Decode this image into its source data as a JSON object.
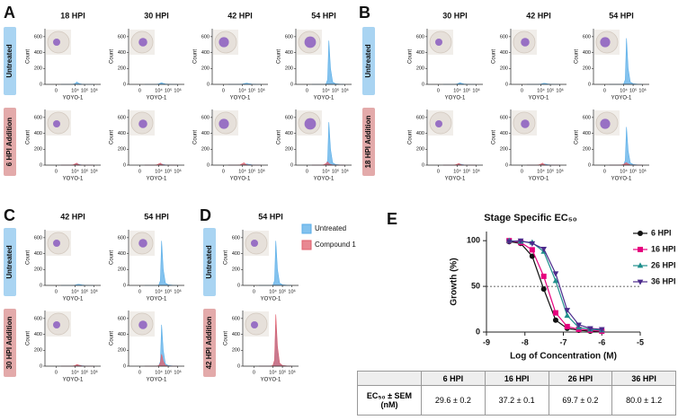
{
  "flow": {
    "axes": {
      "ylabel": "Count",
      "xlabel": "YOYO-1",
      "ylim": [
        0,
        700
      ],
      "yticks": [
        0,
        200,
        400,
        600
      ],
      "xlim": [
        -1500,
        5000000
      ],
      "scale": "biexponential",
      "xticks": [
        0,
        {
          "value": 10000,
          "label": "10⁴"
        },
        {
          "value": 100000,
          "label": "10⁵"
        },
        {
          "value": 1000000,
          "label": "10⁶"
        }
      ],
      "x": [
        300,
        1000,
        3000,
        6000,
        10000,
        15000,
        20000,
        30000,
        50000,
        100000,
        300000,
        1000000
      ]
    },
    "legend": [
      {
        "name": "Untreated",
        "color": "#5aaee8"
      },
      {
        "name": "Compound 1",
        "color": "#e0606e"
      }
    ],
    "panels": [
      {
        "label": "A",
        "columns": [
          "18 HPI",
          "30 HPI",
          "42 HPI",
          "54 HPI"
        ],
        "rows": [
          "Untreated",
          "6 HPI Addition"
        ],
        "plots": [
          [
            {
              "series": [
                {
                  "name": "Untreated",
                  "values": [
                    0,
                    0,
                    0,
                    2,
                    10,
                    30,
                    20,
                    8,
                    3,
                    1,
                    0,
                    0
                  ]
                }
              ]
            },
            {
              "series": [
                {
                  "name": "Untreated",
                  "values": [
                    0,
                    0,
                    0,
                    1,
                    5,
                    15,
                    20,
                    12,
                    5,
                    2,
                    0,
                    0
                  ]
                }
              ]
            },
            {
              "series": [
                {
                  "name": "Untreated",
                  "values": [
                    0,
                    0,
                    0,
                    1,
                    4,
                    8,
                    12,
                    15,
                    10,
                    4,
                    1,
                    0
                  ]
                }
              ]
            },
            {
              "series": [
                {
                  "name": "Untreated",
                  "values": [
                    0,
                    0,
                    0,
                    0,
                    5,
                    60,
                    550,
                    200,
                    30,
                    8,
                    2,
                    0
                  ]
                }
              ]
            }
          ],
          [
            {
              "series": [
                {
                  "name": "Untreated",
                  "values": [
                    0,
                    0,
                    0,
                    1,
                    6,
                    20,
                    15,
                    6,
                    2,
                    0,
                    0,
                    0
                  ]
                },
                {
                  "name": "Compound 1",
                  "values": [
                    0,
                    0,
                    0,
                    3,
                    15,
                    25,
                    12,
                    4,
                    1,
                    0,
                    0,
                    0
                  ]
                }
              ]
            },
            {
              "series": [
                {
                  "name": "Untreated",
                  "values": [
                    0,
                    0,
                    0,
                    1,
                    4,
                    12,
                    15,
                    8,
                    3,
                    1,
                    0,
                    0
                  ]
                },
                {
                  "name": "Compound 1",
                  "values": [
                    0,
                    0,
                    0,
                    3,
                    15,
                    25,
                    12,
                    4,
                    1,
                    0,
                    0,
                    0
                  ]
                }
              ]
            },
            {
              "series": [
                {
                  "name": "Untreated",
                  "values": [
                    0,
                    0,
                    0,
                    1,
                    4,
                    8,
                    12,
                    15,
                    10,
                    4,
                    1,
                    0
                  ]
                },
                {
                  "name": "Compound 1",
                  "values": [
                    0,
                    0,
                    0,
                    4,
                    18,
                    30,
                    14,
                    5,
                    2,
                    0,
                    0,
                    0
                  ]
                }
              ]
            },
            {
              "series": [
                {
                  "name": "Untreated",
                  "values": [
                    0,
                    0,
                    0,
                    0,
                    5,
                    60,
                    540,
                    200,
                    30,
                    8,
                    2,
                    0
                  ]
                },
                {
                  "name": "Compound 1",
                  "values": [
                    0,
                    0,
                    0,
                    5,
                    20,
                    40,
                    20,
                    8,
                    2,
                    0,
                    0,
                    0
                  ]
                }
              ]
            }
          ]
        ]
      },
      {
        "label": "B",
        "columns": [
          "30 HPI",
          "42 HPI",
          "54 HPI"
        ],
        "rows": [
          "Untreated",
          "18 HPI Addition"
        ],
        "plots": [
          [
            {
              "series": [
                {
                  "name": "Untreated",
                  "values": [
                    0,
                    0,
                    0,
                    1,
                    5,
                    15,
                    20,
                    12,
                    5,
                    2,
                    0,
                    0
                  ]
                }
              ]
            },
            {
              "series": [
                {
                  "name": "Untreated",
                  "values": [
                    0,
                    0,
                    0,
                    1,
                    4,
                    10,
                    14,
                    12,
                    6,
                    2,
                    0,
                    0
                  ]
                }
              ]
            },
            {
              "series": [
                {
                  "name": "Untreated",
                  "values": [
                    0,
                    0,
                    0,
                    0,
                    5,
                    60,
                    580,
                    200,
                    30,
                    8,
                    2,
                    0
                  ]
                }
              ]
            }
          ],
          [
            {
              "series": [
                {
                  "name": "Untreated",
                  "values": [
                    0,
                    0,
                    0,
                    1,
                    4,
                    12,
                    15,
                    8,
                    3,
                    1,
                    0,
                    0
                  ]
                },
                {
                  "name": "Compound 1",
                  "values": [
                    0,
                    0,
                    0,
                    3,
                    12,
                    22,
                    10,
                    4,
                    1,
                    0,
                    0,
                    0
                  ]
                }
              ]
            },
            {
              "series": [
                {
                  "name": "Untreated",
                  "values": [
                    0,
                    0,
                    0,
                    1,
                    4,
                    10,
                    14,
                    12,
                    6,
                    2,
                    0,
                    0
                  ]
                },
                {
                  "name": "Compound 1",
                  "values": [
                    0,
                    0,
                    0,
                    3,
                    14,
                    25,
                    12,
                    4,
                    1,
                    0,
                    0,
                    0
                  ]
                }
              ]
            },
            {
              "series": [
                {
                  "name": "Untreated",
                  "values": [
                    0,
                    0,
                    0,
                    0,
                    5,
                    60,
                    480,
                    180,
                    30,
                    8,
                    2,
                    0
                  ]
                },
                {
                  "name": "Compound 1",
                  "values": [
                    0,
                    0,
                    0,
                    2,
                    8,
                    25,
                    30,
                    15,
                    4,
                    1,
                    0,
                    0
                  ]
                }
              ]
            }
          ]
        ]
      },
      {
        "label": "C",
        "columns": [
          "42 HPI",
          "54 HPI"
        ],
        "rows": [
          "Untreated",
          "30 HPI Addition"
        ],
        "plots": [
          [
            {
              "series": [
                {
                  "name": "Untreated",
                  "values": [
                    0,
                    0,
                    0,
                    1,
                    4,
                    10,
                    14,
                    12,
                    6,
                    2,
                    0,
                    0
                  ]
                }
              ]
            },
            {
              "series": [
                {
                  "name": "Untreated",
                  "values": [
                    0,
                    0,
                    0,
                    0,
                    5,
                    60,
                    560,
                    200,
                    30,
                    8,
                    2,
                    0
                  ]
                }
              ]
            }
          ],
          [
            {
              "series": [
                {
                  "name": "Untreated",
                  "values": [
                    0,
                    0,
                    0,
                    1,
                    4,
                    10,
                    14,
                    12,
                    6,
                    2,
                    0,
                    0
                  ]
                },
                {
                  "name": "Compound 1",
                  "values": [
                    0,
                    0,
                    0,
                    2,
                    8,
                    20,
                    18,
                    10,
                    4,
                    1,
                    0,
                    0
                  ]
                }
              ]
            },
            {
              "series": [
                {
                  "name": "Untreated",
                  "values": [
                    0,
                    0,
                    0,
                    0,
                    5,
                    60,
                    520,
                    200,
                    30,
                    8,
                    2,
                    0
                  ]
                },
                {
                  "name": "Compound 1",
                  "values": [
                    0,
                    0,
                    0,
                    1,
                    6,
                    40,
                    150,
                    60,
                    10,
                    2,
                    0,
                    0
                  ]
                }
              ]
            }
          ]
        ]
      },
      {
        "label": "D",
        "columns": [
          "54 HPI"
        ],
        "rows": [
          "Untreated",
          "42 HPI Addition"
        ],
        "plots": [
          [
            {
              "series": [
                {
                  "name": "Untreated",
                  "values": [
                    0,
                    0,
                    0,
                    0,
                    5,
                    60,
                    560,
                    200,
                    30,
                    8,
                    2,
                    0
                  ]
                }
              ]
            }
          ],
          [
            {
              "series": [
                {
                  "name": "Untreated",
                  "values": [
                    0,
                    0,
                    0,
                    0,
                    5,
                    60,
                    520,
                    200,
                    30,
                    8,
                    2,
                    0
                  ]
                },
                {
                  "name": "Compound 1",
                  "values": [
                    0,
                    0,
                    0,
                    1,
                    10,
                    80,
                    650,
                    250,
                    40,
                    8,
                    2,
                    0
                  ]
                }
              ]
            }
          ]
        ]
      }
    ]
  },
  "chart_data": {
    "label": "E",
    "type": "line",
    "title": "Stage Specific EC₅₀",
    "xlabel": "Log of Concentration (M)",
    "ylabel": "Growth (%)",
    "x": [
      -8.41,
      -8.11,
      -7.81,
      -7.51,
      -7.2,
      -6.9,
      -6.6,
      -6.3,
      -6
    ],
    "xlim": [
      -9,
      -5
    ],
    "xticks": [
      -9,
      -8,
      -7,
      -6,
      -5
    ],
    "ylim": [
      0,
      110
    ],
    "yticks": [
      0,
      50,
      100
    ],
    "reference_line": 50,
    "series": [
      {
        "name": "6 HPI",
        "color": "#111111",
        "marker": "circle",
        "values": [
          99,
          97,
          83,
          47,
          13,
          4,
          2,
          1,
          1
        ]
      },
      {
        "name": "16 HPI",
        "color": "#e6007e",
        "marker": "square",
        "values": [
          100,
          98,
          90,
          61,
          21,
          6,
          3,
          2,
          1
        ]
      },
      {
        "name": "26 HPI",
        "color": "#1f8f8c",
        "marker": "triangle-up",
        "values": [
          100,
          99,
          98,
          88,
          56,
          18,
          5,
          3,
          2
        ]
      },
      {
        "name": "36 HPI",
        "color": "#4b2a8c",
        "marker": "triangle-down",
        "values": [
          99,
          100,
          97,
          91,
          64,
          24,
          8,
          4,
          3
        ]
      }
    ]
  },
  "table": {
    "columns": [
      "6 HPI",
      "16 HPI",
      "26 HPI",
      "36 HPI"
    ],
    "rows": [
      {
        "header": "EC₅₀ ± SEM (nM)",
        "cells": [
          "29.6 ± 0.2",
          "37.2 ± 0.1",
          "69.7 ± 0.2",
          "80.0 ± 1.2"
        ]
      }
    ]
  }
}
